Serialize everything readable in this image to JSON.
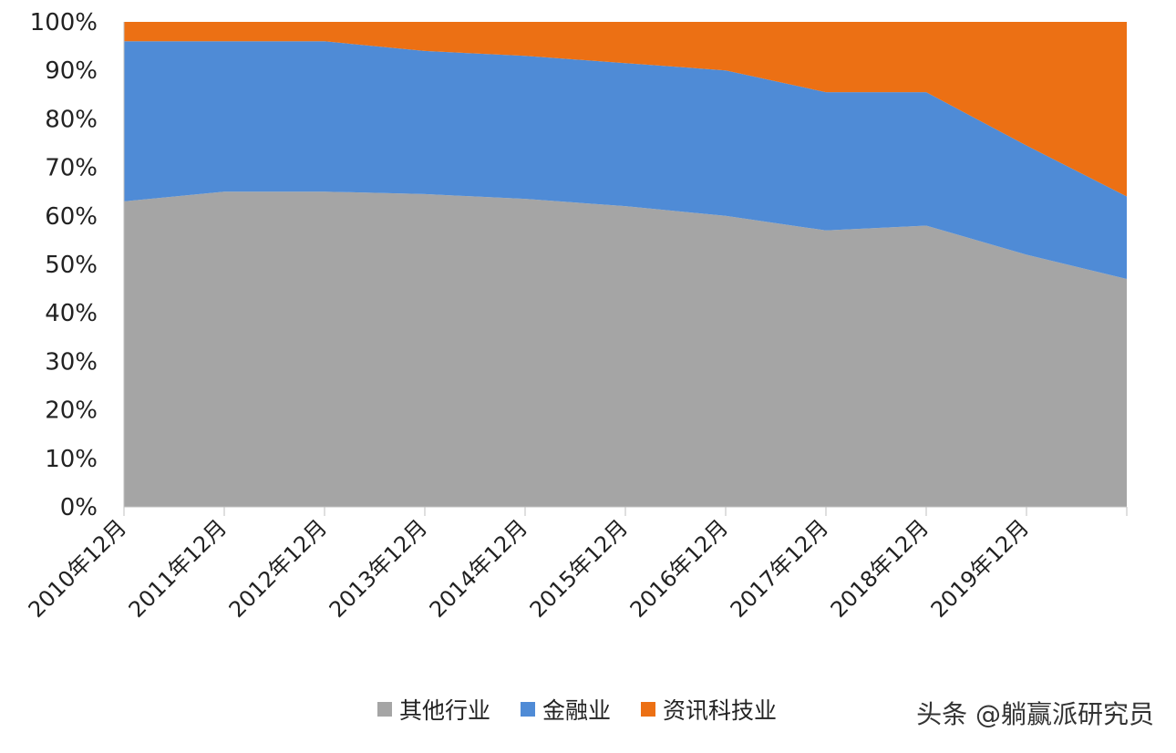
{
  "chart_data": {
    "type": "area",
    "stacked": true,
    "categories": [
      "2010年12月",
      "2011年12月",
      "2012年12月",
      "2013年12月",
      "2014年12月",
      "2015年12月",
      "2016年12月",
      "2017年12月",
      "2018年12月",
      "2019年12月",
      ""
    ],
    "series": [
      {
        "name": "其他行业",
        "color": "#a5a5a5",
        "values": [
          63,
          65,
          65,
          64.5,
          63.5,
          62,
          60,
          57,
          58,
          52,
          47
        ]
      },
      {
        "name": "金融业",
        "color": "#4f8bd6",
        "values": [
          33,
          31,
          31,
          29.5,
          29.5,
          29.5,
          30,
          28.5,
          27.5,
          22.5,
          17
        ]
      },
      {
        "name": "资讯科技业",
        "color": "#ec7014",
        "values": [
          4,
          4,
          4,
          6,
          7,
          8.5,
          10,
          14.5,
          14.5,
          25.5,
          36
        ]
      }
    ],
    "y_tick_labels": [
      "0%",
      "10%",
      "20%",
      "30%",
      "40%",
      "50%",
      "60%",
      "70%",
      "80%",
      "90%",
      "100%"
    ],
    "ylim": [
      0,
      100
    ],
    "legend_position": "bottom"
  },
  "watermark": "头条 @躺赢派研究员"
}
